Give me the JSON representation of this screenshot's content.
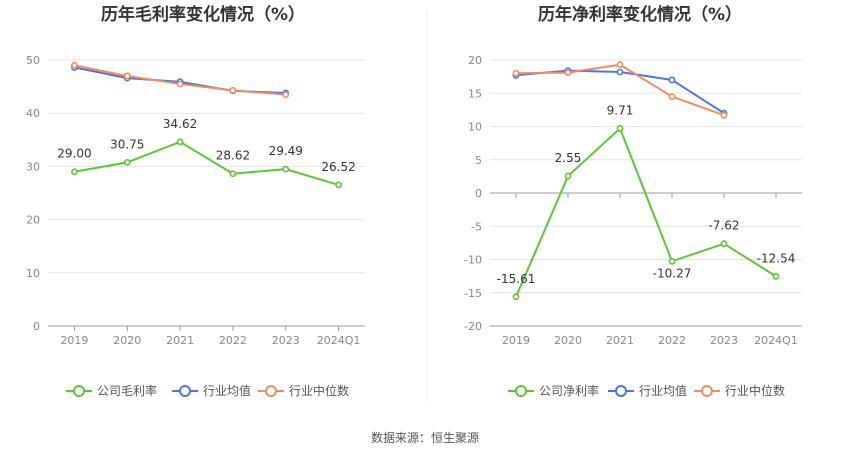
{
  "source_label": "数据来源：恒生聚源",
  "colors": {
    "company": "#5ec33a",
    "avg": "#4a77d8",
    "median": "#f08a62"
  },
  "chart_data": [
    {
      "type": "line",
      "title": "历年毛利率变化情况（%）",
      "categories": [
        "2019",
        "2020",
        "2021",
        "2022",
        "2023",
        "2024Q1"
      ],
      "ylim": [
        0,
        50
      ],
      "yticks": [
        0,
        10,
        20,
        30,
        40,
        50
      ],
      "grid": true,
      "legend_position": "bottom",
      "series": [
        {
          "name": "公司毛利率",
          "color": "#5ec33a",
          "values": [
            29.0,
            30.75,
            34.62,
            28.62,
            29.49,
            26.52
          ],
          "labels": [
            "29.00",
            "30.75",
            "34.62",
            "28.62",
            "29.49",
            "26.52"
          ]
        },
        {
          "name": "行业均值",
          "color": "#4a77d8",
          "values": [
            48.6,
            46.6,
            45.9,
            44.2,
            43.8,
            null
          ]
        },
        {
          "name": "行业中位数",
          "color": "#f08a62",
          "values": [
            49.0,
            47.0,
            45.5,
            44.3,
            43.5,
            null
          ]
        }
      ]
    },
    {
      "type": "line",
      "title": "历年净利率变化情况（%）",
      "categories": [
        "2019",
        "2020",
        "2021",
        "2022",
        "2023",
        "2024Q1"
      ],
      "ylim": [
        -20,
        20
      ],
      "yticks": [
        -20,
        -15,
        -10,
        -5,
        0,
        5,
        10,
        15,
        20
      ],
      "grid": true,
      "legend_position": "bottom",
      "series": [
        {
          "name": "公司净利率",
          "color": "#5ec33a",
          "values": [
            -15.61,
            2.55,
            9.71,
            -10.27,
            -7.62,
            -12.54
          ],
          "labels": [
            "-15.61",
            "2.55",
            "9.71",
            "-10.27",
            "-7.62",
            "-12.54"
          ]
        },
        {
          "name": "行业均值",
          "color": "#4a77d8",
          "values": [
            17.7,
            18.4,
            18.2,
            17.0,
            12.0,
            null
          ]
        },
        {
          "name": "行业中位数",
          "color": "#f08a62",
          "values": [
            18.0,
            18.1,
            19.3,
            14.5,
            11.7,
            null
          ]
        }
      ]
    }
  ]
}
